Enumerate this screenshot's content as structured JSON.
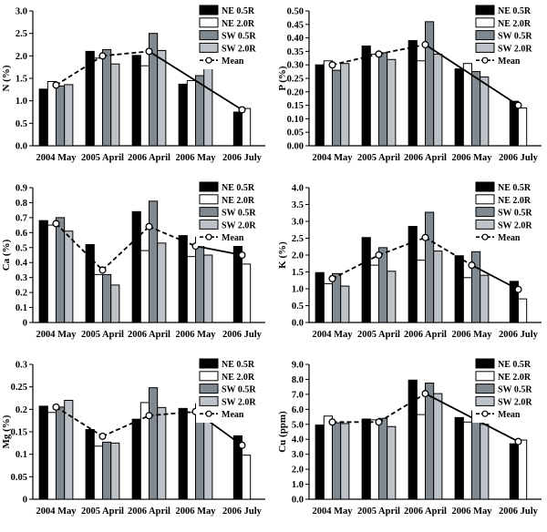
{
  "legend_labels": [
    "NE 0.5R",
    "NE 2.0R",
    "SW 0.5R",
    "SW 2.0R",
    "Mean"
  ],
  "colors": {
    "ne05": "#000000",
    "ne20": "#ffffff",
    "sw05": "#808890",
    "sw20": "#bcc2c8",
    "mean": "#000000"
  },
  "chart_data": [
    {
      "type": "bar",
      "ylabel": "N (%)",
      "ylim": [
        0,
        3.0
      ],
      "yticks": [
        "0.0",
        "0.5",
        "1.0",
        "1.5",
        "2.0",
        "2.5",
        "3.0"
      ],
      "categories": [
        "2004 May",
        "2005 April",
        "2006 April",
        "2006 May",
        "2006 July"
      ],
      "series": [
        {
          "name": "NE 0.5R",
          "values": [
            1.26,
            2.1,
            2.01,
            1.37,
            0.75
          ]
        },
        {
          "name": "NE 2.0R",
          "values": [
            1.43,
            1.95,
            1.78,
            1.45,
            0.83
          ]
        },
        {
          "name": "SW 0.5R",
          "values": [
            1.33,
            2.14,
            2.5,
            1.56,
            null
          ]
        },
        {
          "name": "SW 2.0R",
          "values": [
            1.36,
            1.82,
            2.12,
            1.72,
            null
          ]
        }
      ],
      "mean": [
        1.35,
        2.0,
        2.1,
        null,
        0.8
      ]
    },
    {
      "type": "bar",
      "ylabel": "P (%)",
      "ylim": [
        0,
        0.5
      ],
      "yticks": [
        "0.00",
        "0.05",
        "0.10",
        "0.15",
        "0.20",
        "0.25",
        "0.30",
        "0.35",
        "0.40",
        "0.45",
        "0.50"
      ],
      "categories": [
        "2004 May",
        "2005 April",
        "2006 April",
        "2006 May",
        "2006 July"
      ],
      "series": [
        {
          "name": "NE 0.5R",
          "values": [
            0.3,
            0.37,
            0.39,
            0.285,
            0.165
          ]
        },
        {
          "name": "NE 2.0R",
          "values": [
            0.315,
            0.34,
            0.315,
            0.305,
            0.14
          ]
        },
        {
          "name": "SW 0.5R",
          "values": [
            0.28,
            0.345,
            0.46,
            0.275,
            null
          ]
        },
        {
          "name": "SW 2.0R",
          "values": [
            0.305,
            0.32,
            0.34,
            0.255,
            null
          ]
        }
      ],
      "mean": [
        0.3,
        0.34,
        0.375,
        null,
        0.15
      ]
    },
    {
      "type": "bar",
      "ylabel": "Ca (%)",
      "ylim": [
        0,
        0.9
      ],
      "yticks": [
        "0",
        "0.1",
        "0.2",
        "0.3",
        "0.4",
        "0.5",
        "0.6",
        "0.7",
        "0.8",
        "0.9"
      ],
      "categories": [
        "2004 May",
        "2005 April",
        "2006 April",
        "2006 May",
        "2006 July"
      ],
      "series": [
        {
          "name": "NE 0.5R",
          "values": [
            0.68,
            0.52,
            0.74,
            0.58,
            0.51
          ]
        },
        {
          "name": "NE 2.0R",
          "values": [
            0.65,
            0.32,
            0.48,
            0.44,
            0.39
          ]
        },
        {
          "name": "SW 0.5R",
          "values": [
            0.7,
            0.32,
            0.81,
            0.57,
            null
          ]
        },
        {
          "name": "SW 2.0R",
          "values": [
            0.61,
            0.25,
            0.53,
            0.45,
            null
          ]
        }
      ],
      "mean": [
        0.66,
        0.35,
        0.64,
        0.51,
        0.45
      ]
    },
    {
      "type": "bar",
      "ylabel": "K (%)",
      "ylim": [
        0,
        4.0
      ],
      "yticks": [
        "0.0",
        "0.5",
        "1.0",
        "1.5",
        "2.0",
        "2.5",
        "3.0",
        "3.5",
        "4.0"
      ],
      "categories": [
        "2004 May",
        "2005 April",
        "2006 April",
        "2006 May",
        "2006 July"
      ],
      "series": [
        {
          "name": "NE 0.5R",
          "values": [
            1.48,
            2.52,
            2.85,
            1.98,
            1.22
          ]
        },
        {
          "name": "NE 2.0R",
          "values": [
            1.15,
            1.7,
            1.85,
            1.33,
            0.7
          ]
        },
        {
          "name": "SW 0.5R",
          "values": [
            1.45,
            2.22,
            3.27,
            2.1,
            null
          ]
        },
        {
          "name": "SW 2.0R",
          "values": [
            1.08,
            1.52,
            2.12,
            1.4,
            null
          ]
        }
      ],
      "mean": [
        1.3,
        2.0,
        2.52,
        1.7,
        0.98
      ]
    },
    {
      "type": "bar",
      "ylabel": "Mg (%)",
      "ylim": [
        0,
        0.3
      ],
      "yticks": [
        "0",
        "0.05",
        "0.1",
        "0.15",
        "0.2",
        "0.25",
        "0.3"
      ],
      "categories": [
        "2004 May",
        "2005 April",
        "2006 April",
        "2006 May",
        "2006 July"
      ],
      "series": [
        {
          "name": "NE 0.5R",
          "values": [
            0.207,
            0.155,
            0.178,
            0.202,
            0.141
          ]
        },
        {
          "name": "NE 2.0R",
          "values": [
            0.193,
            0.118,
            0.215,
            0.193,
            0.098
          ]
        },
        {
          "name": "SW 0.5R",
          "values": [
            0.205,
            0.127,
            0.248,
            0.212,
            null
          ]
        },
        {
          "name": "SW 2.0R",
          "values": [
            0.22,
            0.125,
            0.204,
            0.185,
            null
          ]
        }
      ],
      "mean": [
        0.205,
        0.14,
        0.186,
        0.195,
        0.12
      ]
    },
    {
      "type": "bar",
      "ylabel": "Cu (ppm)",
      "ylim": [
        0,
        9.0
      ],
      "yticks": [
        "0.0",
        "1.0",
        "2.0",
        "3.0",
        "4.0",
        "5.0",
        "6.0",
        "7.0",
        "8.0",
        "9.0"
      ],
      "categories": [
        "2004 May",
        "2005 April",
        "2006 April",
        "2006 May",
        "2006 July"
      ],
      "series": [
        {
          "name": "NE 0.5R",
          "values": [
            4.95,
            5.35,
            7.95,
            5.45,
            3.7
          ]
        },
        {
          "name": "NE 2.0R",
          "values": [
            5.55,
            5.3,
            5.65,
            5.15,
            3.95
          ]
        },
        {
          "name": "SW 0.5R",
          "values": [
            5.1,
            5.4,
            7.75,
            5.9,
            null
          ]
        },
        {
          "name": "SW 2.0R",
          "values": [
            5.05,
            4.85,
            7.05,
            5.0,
            null
          ]
        }
      ],
      "mean": [
        5.15,
        5.15,
        7.05,
        null,
        3.85
      ]
    }
  ]
}
